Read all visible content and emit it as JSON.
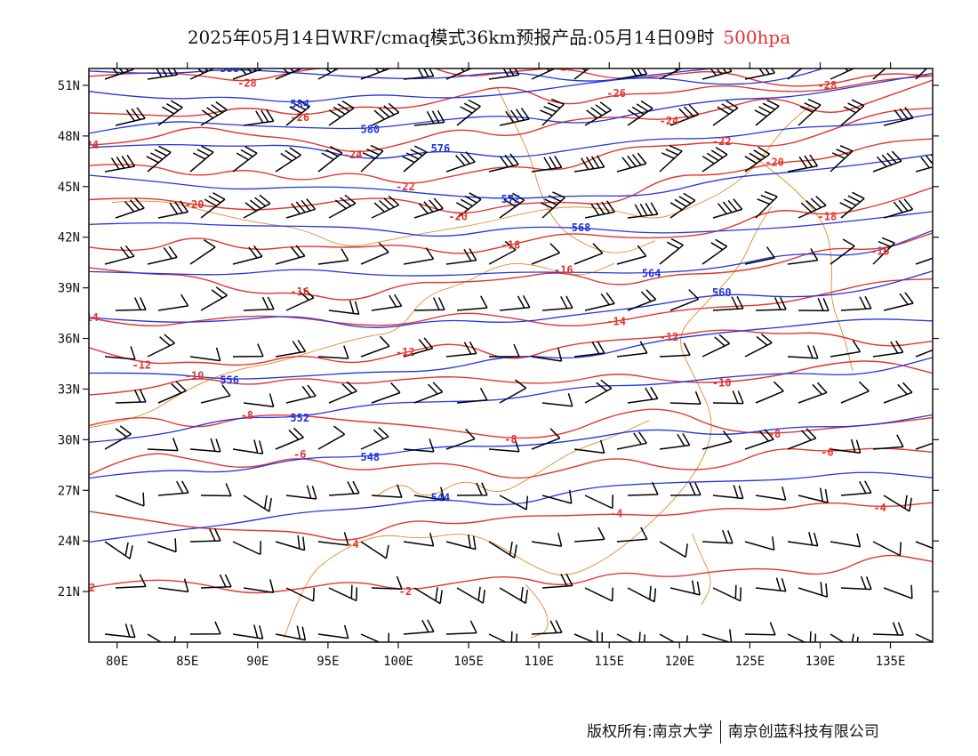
{
  "title": {
    "main": "2025年05月14日WRF/cmaq模式36km预报产品:05月14日09时",
    "level": "500hpa"
  },
  "map": {
    "lon_range": [
      78,
      138
    ],
    "lat_range": [
      18,
      52
    ],
    "x_ticks": [
      "80E",
      "85E",
      "90E",
      "95E",
      "100E",
      "105E",
      "110E",
      "115E",
      "120E",
      "125E",
      "130E",
      "135E"
    ],
    "y_ticks": [
      "51N",
      "48N",
      "45N",
      "42N",
      "39N",
      "36N",
      "33N",
      "30N",
      "27N",
      "24N",
      "21N"
    ],
    "colors": {
      "height": "#2135e0",
      "temperature": "#e2352f",
      "border": "#e08a2a",
      "wind": "#000000"
    },
    "height_labels": [
      "544",
      "548",
      "552",
      "556",
      "560",
      "564",
      "568",
      "572",
      "576",
      "580",
      "584",
      "588"
    ],
    "temperature_labels": [
      "-28",
      "-26",
      "-24",
      "-22",
      "-20",
      "-18",
      "-16",
      "-14",
      "-12",
      "-10",
      "-8",
      "-6",
      "-4",
      "-2"
    ]
  },
  "footer": {
    "left": "版权所有:南京大学",
    "right": "南京创蓝科技有限公司"
  }
}
